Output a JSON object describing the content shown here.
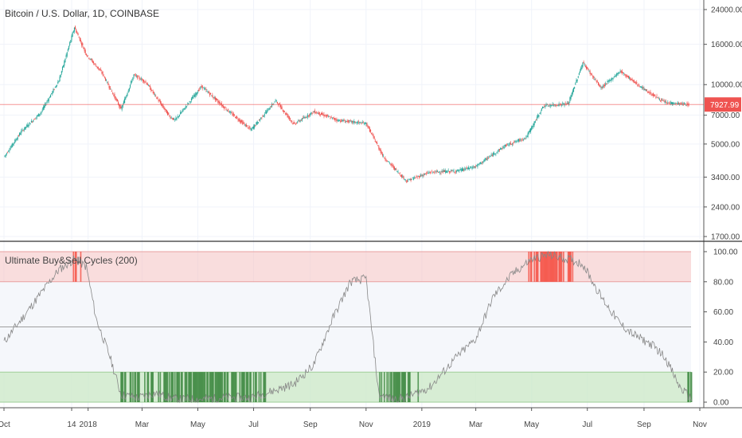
{
  "header": {
    "symbol_title": "Bitcoin / U.S. Dollar, 1D, COINBASE",
    "indicator_title": "Ultimate Buy&Sell Cycles (200)"
  },
  "colors": {
    "up": "#26a69a",
    "down": "#ef5350",
    "overbought_band": "#f5c6c6",
    "oversold_band": "#cde8c9",
    "overbought_bar": "#f44336",
    "oversold_bar": "#2e7d32",
    "price_line": "#ef5350",
    "oscillator_line": "#888888"
  },
  "price_axis": {
    "scale": "log",
    "ticks": [
      "24000.00",
      "16000.00",
      "10000.00",
      "7000.00",
      "5000.00",
      "3400.00",
      "2400.00",
      "1700.00"
    ],
    "tick_values": [
      24000,
      16000,
      10000,
      7000,
      5000,
      3400,
      2400,
      1700
    ],
    "current_price": "7927.99",
    "current_price_value": 7927.99
  },
  "oscillator_axis": {
    "ticks": [
      "100.00",
      "80.00",
      "60.00",
      "40.00",
      "20.00",
      "0.00"
    ],
    "tick_values": [
      100,
      80,
      60,
      40,
      20,
      0
    ],
    "overbought": 80,
    "oversold": 20,
    "midline": 50
  },
  "time_axis": {
    "labels": [
      "Oct",
      "14",
      "2018",
      "Mar",
      "May",
      "Jul",
      "Sep",
      "Nov",
      "2019",
      "Mar",
      "May",
      "Jul",
      "Sep",
      "Nov"
    ],
    "dates": [
      "2017-10-01",
      "2017-12-14",
      "2018-01-01",
      "2018-03-01",
      "2018-05-01",
      "2018-07-01",
      "2018-09-01",
      "2018-11-01",
      "2019-01-01",
      "2019-03-01",
      "2019-05-01",
      "2019-07-01",
      "2019-09-01",
      "2019-11-01"
    ]
  },
  "chart_data": [
    {
      "type": "line",
      "title": "Bitcoin / U.S. Dollar, 1D, COINBASE",
      "x": [
        "2017-10-01",
        "2017-10-20",
        "2017-11-10",
        "2017-11-30",
        "2017-12-17",
        "2017-12-30",
        "2018-01-16",
        "2018-02-06",
        "2018-02-20",
        "2018-03-05",
        "2018-03-31",
        "2018-04-06",
        "2018-05-05",
        "2018-06-01",
        "2018-06-28",
        "2018-07-25",
        "2018-08-14",
        "2018-09-05",
        "2018-10-01",
        "2018-11-01",
        "2018-11-20",
        "2018-12-15",
        "2019-01-10",
        "2019-02-08",
        "2019-03-01",
        "2019-04-02",
        "2019-04-25",
        "2019-05-14",
        "2019-06-10",
        "2019-06-26",
        "2019-07-16",
        "2019-08-06",
        "2019-08-30",
        "2019-09-24",
        "2019-10-20"
      ],
      "y": [
        4300,
        5800,
        7200,
        10500,
        19500,
        14200,
        11500,
        7500,
        11200,
        10300,
        6900,
        6600,
        9800,
        7500,
        5900,
        8300,
        6300,
        7300,
        6600,
        6350,
        4300,
        3250,
        3600,
        3650,
        3850,
        4900,
        5400,
        7800,
        8000,
        12900,
        9600,
        11700,
        9600,
        8100,
        7928
      ]
    },
    {
      "type": "line",
      "title": "Ultimate Buy&Sell Cycles (200)",
      "x": [
        "2017-10-01",
        "2017-10-20",
        "2017-11-10",
        "2017-11-30",
        "2017-12-17",
        "2017-12-30",
        "2018-01-10",
        "2018-01-25",
        "2018-02-06",
        "2018-02-25",
        "2018-03-15",
        "2018-04-06",
        "2018-05-05",
        "2018-06-01",
        "2018-06-28",
        "2018-07-25",
        "2018-08-14",
        "2018-09-05",
        "2018-09-25",
        "2018-10-15",
        "2018-11-01",
        "2018-11-15",
        "2018-11-30",
        "2018-12-15",
        "2019-01-10",
        "2019-02-08",
        "2019-03-01",
        "2019-03-20",
        "2019-04-10",
        "2019-05-01",
        "2019-05-20",
        "2019-06-10",
        "2019-06-26",
        "2019-07-16",
        "2019-08-06",
        "2019-08-20",
        "2019-09-10",
        "2019-09-24",
        "2019-10-10",
        "2019-10-23"
      ],
      "y": [
        40,
        55,
        72,
        88,
        95,
        90,
        55,
        30,
        5,
        3,
        6,
        2,
        2,
        3,
        3,
        8,
        12,
        25,
        55,
        80,
        82,
        5,
        2,
        3,
        10,
        30,
        42,
        70,
        85,
        95,
        98,
        95,
        92,
        70,
        52,
        45,
        38,
        30,
        10,
        2
      ],
      "ylim": [
        0,
        100
      ]
    }
  ]
}
